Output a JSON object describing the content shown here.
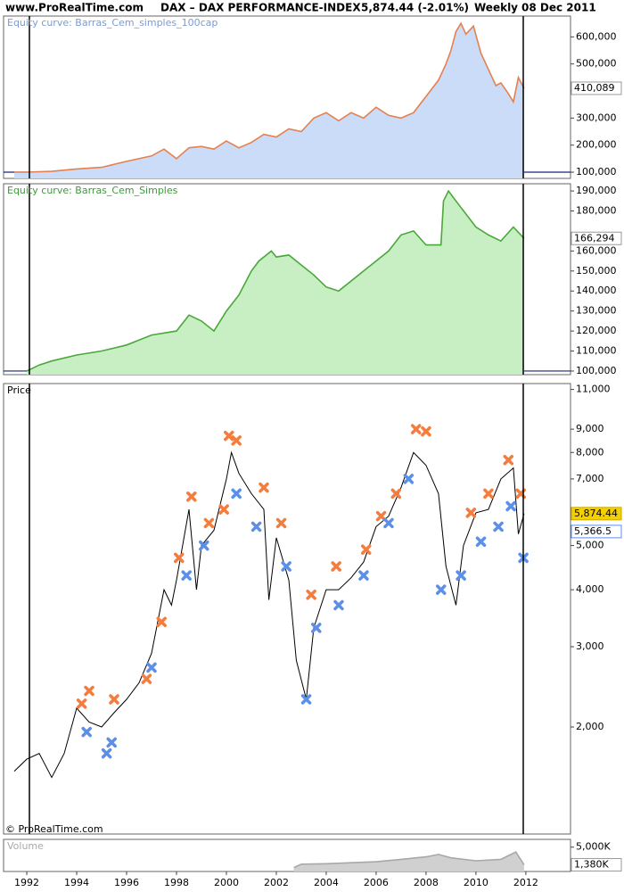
{
  "header": {
    "site": "www.ProRealTime.com",
    "instrument": "DAX – DAX PERFORMANCE-INDEX",
    "quote": "5,874.44 (-2.01%)",
    "period": "Weekly",
    "date": "08 Dec 2011"
  },
  "copyright": "© ProRealTime.com",
  "chart_data": [
    {
      "type": "area",
      "title": "Equity curve: Barras_Cem_simples_100cap",
      "color": "#e5804f",
      "fill": "#cadcf8",
      "x": [
        1991.5,
        1992,
        1993,
        1994,
        1995,
        1996,
        1997,
        1997.5,
        1998,
        1998.5,
        1999,
        1999.5,
        2000,
        2000.5,
        2001,
        2001.5,
        2002,
        2002.5,
        2003,
        2003.5,
        2004,
        2004.5,
        2005,
        2005.5,
        2006,
        2006.5,
        2007,
        2007.5,
        2008,
        2008.5,
        2008.8,
        2009,
        2009.2,
        2009.4,
        2009.6,
        2009.9,
        2010.2,
        2010.5,
        2010.8,
        2011,
        2011.3,
        2011.5,
        2011.7,
        2011.93
      ],
      "values": [
        100000,
        100000,
        103000,
        112000,
        118000,
        140000,
        160000,
        185000,
        150000,
        190000,
        195000,
        185000,
        215000,
        190000,
        210000,
        240000,
        230000,
        260000,
        250000,
        300000,
        320000,
        290000,
        320000,
        300000,
        340000,
        310000,
        300000,
        320000,
        380000,
        440000,
        500000,
        550000,
        620000,
        650000,
        610000,
        640000,
        540000,
        480000,
        420000,
        430000,
        390000,
        360000,
        450000,
        410089
      ],
      "xlim": [
        1991.07,
        2013.79
      ],
      "ylim": [
        77000,
        677000
      ],
      "yticks": [
        {
          "value": 100000,
          "label": "100,000"
        },
        {
          "value": 200000,
          "label": "200,000"
        },
        {
          "value": 300000,
          "label": "300,000"
        },
        {
          "value": 400000,
          "label": "400,000"
        },
        {
          "value": 500000,
          "label": "500,000"
        },
        {
          "value": 600000,
          "label": "600,000"
        }
      ],
      "baseline": 100000,
      "last_value_label": "410,089"
    },
    {
      "type": "area",
      "title": "Equity curve: Barras_Cem_Simples",
      "color": "#4aa83a",
      "fill": "#c8eec4",
      "x": [
        1992,
        1992.5,
        1993,
        1994,
        1995,
        1996,
        1997,
        1998,
        1998.5,
        1999,
        1999.5,
        2000,
        2000.5,
        2001,
        2001.3,
        2001.8,
        2002,
        2002.5,
        2003,
        2003.5,
        2004,
        2004.5,
        2005,
        2005.5,
        2006,
        2006.5,
        2007,
        2007.5,
        2008,
        2008.6,
        2008.7,
        2008.9,
        2009.2,
        2010,
        2010.5,
        2011,
        2011.5,
        2011.93
      ],
      "values": [
        100000,
        103000,
        105000,
        108000,
        110000,
        113000,
        118000,
        120000,
        128000,
        125000,
        120000,
        130000,
        138000,
        150000,
        155000,
        160000,
        157000,
        158000,
        153000,
        148000,
        142000,
        140000,
        145000,
        150000,
        155000,
        160000,
        168000,
        170000,
        163000,
        163000,
        185000,
        190000,
        185000,
        172000,
        168000,
        165000,
        172000,
        166294
      ],
      "xlim": [
        1991.07,
        2013.79
      ],
      "ylim": [
        98200,
        193600
      ],
      "yticks": [
        {
          "value": 100000,
          "label": "100,000"
        },
        {
          "value": 110000,
          "label": "110,000"
        },
        {
          "value": 120000,
          "label": "120,000"
        },
        {
          "value": 130000,
          "label": "130,000"
        },
        {
          "value": 140000,
          "label": "140,000"
        },
        {
          "value": 150000,
          "label": "150,000"
        },
        {
          "value": 160000,
          "label": "160,000"
        },
        {
          "value": 180000,
          "label": "180,000"
        },
        {
          "value": 190000,
          "label": "190,000"
        }
      ],
      "baseline": 100000,
      "last_value_label": "166,294"
    },
    {
      "type": "line",
      "title": "Price",
      "log_scale": true,
      "series": [
        {
          "color": "#000000",
          "x": [
            1991.5,
            1992,
            1992.5,
            1993,
            1993.5,
            1994,
            1994.5,
            1995,
            1995.5,
            1996,
            1996.5,
            1997,
            1997.5,
            1997.8,
            1998,
            1998.5,
            1998.8,
            1999,
            1999.5,
            2000,
            2000.2,
            2000.5,
            2001,
            2001.5,
            2001.7,
            2002,
            2002.5,
            2002.8,
            2003.2,
            2003.5,
            2004,
            2004.5,
            2005,
            2005.5,
            2006,
            2006.5,
            2007,
            2007.5,
            2008,
            2008.5,
            2008.8,
            2009.2,
            2009.5,
            2010,
            2010.5,
            2011,
            2011.5,
            2011.7,
            2011.93
          ],
          "values": [
            1600,
            1700,
            1750,
            1550,
            1750,
            2200,
            2050,
            2000,
            2150,
            2300,
            2500,
            2900,
            4000,
            3700,
            4200,
            6000,
            4000,
            5000,
            5400,
            7000,
            8000,
            7200,
            6500,
            6000,
            3800,
            5200,
            4200,
            2800,
            2300,
            3300,
            4000,
            4000,
            4250,
            4600,
            5500,
            5800,
            6700,
            8000,
            7500,
            6500,
            4500,
            3700,
            5000,
            5900,
            6000,
            7000,
            7400,
            5300,
            5874.44
          ]
        },
        {
          "color": "#f47c3c",
          "marker": "x",
          "x": [
            1994.2,
            1994.5,
            1995.5,
            1996.8,
            1997.4,
            1998.1,
            1998.6,
            1999.3,
            1999.9,
            2000.1,
            2000.4,
            2001.5,
            2002.2,
            2003.4,
            2004.4,
            2005.6,
            2006.2,
            2006.8,
            2007.6,
            2008.0,
            2009.8,
            2010.5,
            2011.3,
            2011.8
          ],
          "values": [
            2250,
            2400,
            2300,
            2550,
            3400,
            4700,
            6400,
            5600,
            6000,
            8700,
            8500,
            6700,
            5600,
            3900,
            4500,
            4900,
            5800,
            6500,
            9000,
            8900,
            5900,
            6500,
            7700,
            6500
          ]
        },
        {
          "color": "#5b8fe8",
          "marker": "x",
          "x": [
            1994.4,
            1995.2,
            1995.4,
            1997.0,
            1998.4,
            1999.1,
            2000.4,
            2001.2,
            2002.4,
            2003.2,
            2003.6,
            2004.5,
            2005.5,
            2006.5,
            2007.3,
            2008.6,
            2009.4,
            2010.2,
            2010.9,
            2011.4,
            2011.9
          ],
          "values": [
            1950,
            1750,
            1850,
            2700,
            4300,
            5000,
            6500,
            5500,
            4500,
            2300,
            3300,
            3700,
            4300,
            5600,
            7000,
            4000,
            4300,
            5100,
            5500,
            6100,
            4700
          ]
        }
      ],
      "xlim": [
        1991.07,
        2013.79
      ],
      "ylim": [
        1165,
        11330
      ],
      "yticks": [
        {
          "value": 2000,
          "label": "2,000"
        },
        {
          "value": 3000,
          "label": "3,000"
        },
        {
          "value": 4000,
          "label": "4,000"
        },
        {
          "value": 5000,
          "label": "5,000"
        },
        {
          "value": 7000,
          "label": "7,000"
        },
        {
          "value": 8000,
          "label": "8,000"
        },
        {
          "value": 9000,
          "label": "9,000"
        },
        {
          "value": 11000,
          "label": "11,000"
        }
      ],
      "last_value_label": "5,874.44",
      "annotations": [
        {
          "value": 5366.5,
          "label": "5,366.5"
        }
      ]
    },
    {
      "type": "area",
      "title": "Volume",
      "color": "#a8a8a8",
      "fill": "#d0d0d0",
      "x": [
        2002.7,
        2003,
        2004,
        2005,
        2006,
        2007,
        2008,
        2008.5,
        2009,
        2010,
        2011,
        2011.6,
        2011.93
      ],
      "values": [
        800,
        1500,
        1600,
        1800,
        2000,
        2500,
        3000,
        3500,
        2800,
        2200,
        2500,
        4000,
        1380
      ],
      "xlim": [
        1991.07,
        2013.79
      ],
      "ylim": [
        0,
        6600
      ],
      "yticks": [
        {
          "value": 5000,
          "label": "5,000K"
        }
      ],
      "last_value_label": "1,380K",
      "xticks": [
        1992,
        1994,
        1996,
        1998,
        2000,
        2002,
        2004,
        2006,
        2008,
        2010,
        2012
      ]
    }
  ]
}
